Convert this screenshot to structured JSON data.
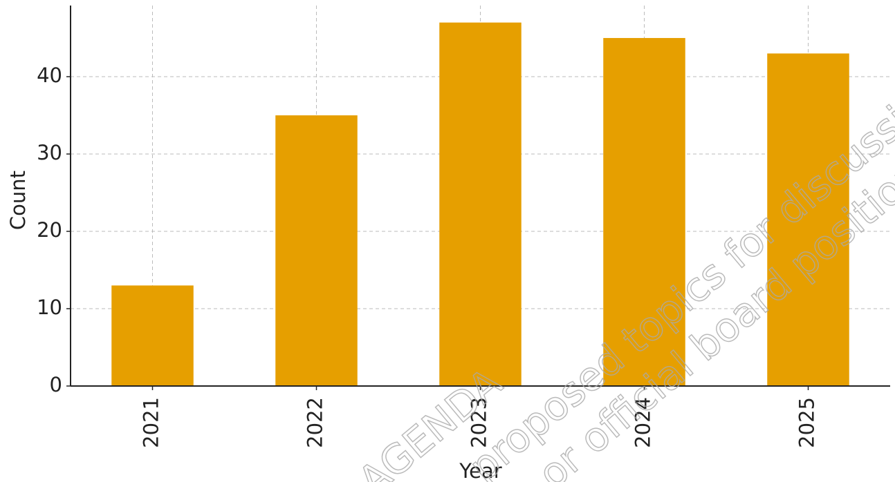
{
  "chart_data": {
    "type": "bar",
    "x_label": "Year",
    "y_label": "Count",
    "categories": [
      "2021",
      "2022",
      "2023",
      "2024",
      "2025"
    ],
    "values": [
      13,
      35,
      47,
      45,
      43
    ],
    "color": "#e69f00",
    "ylim": [
      0,
      49.2
    ],
    "yticks": [
      0,
      10,
      20,
      30,
      40
    ],
    "grid": true
  },
  "watermark": [
    "AGENDA",
    "proposed topics for discussion",
    "or official board position"
  ]
}
